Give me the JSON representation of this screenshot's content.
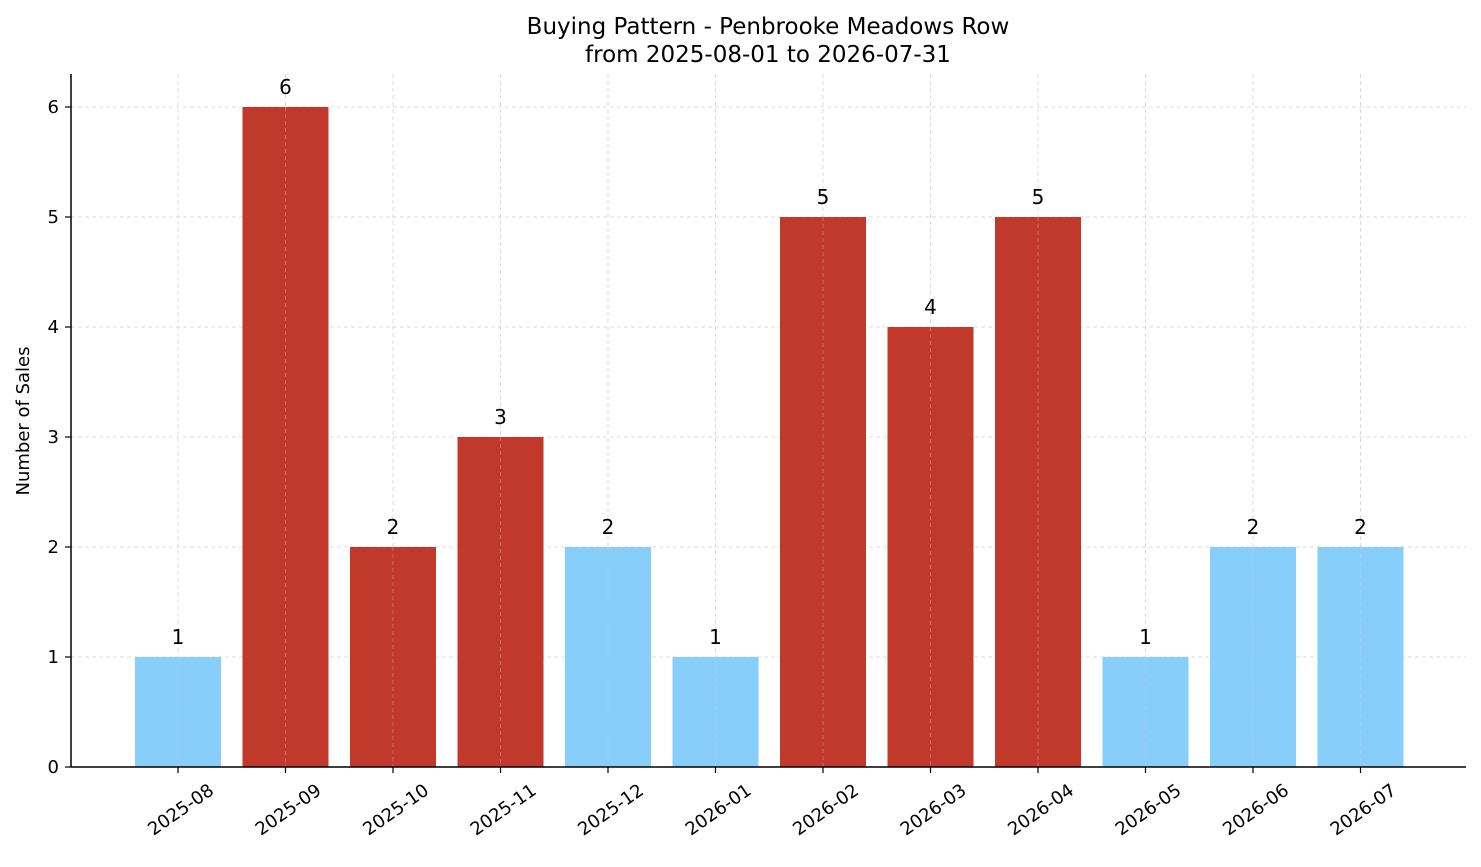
{
  "chart_data": {
    "type": "bar",
    "title": "Buying Pattern - Penbrooke Meadows Row",
    "subtitle": "from 2025-08-01 to 2026-07-31",
    "xlabel": "",
    "ylabel": "Number of Sales",
    "categories": [
      "2025-08",
      "2025-09",
      "2025-10",
      "2025-11",
      "2025-12",
      "2026-01",
      "2026-02",
      "2026-03",
      "2026-04",
      "2026-05",
      "2026-06",
      "2026-07"
    ],
    "values": [
      1,
      6,
      2,
      3,
      2,
      1,
      5,
      4,
      5,
      1,
      2,
      2
    ],
    "bar_colors": [
      "#87CEFA",
      "#C0392B",
      "#C0392B",
      "#C0392B",
      "#87CEFA",
      "#87CEFA",
      "#C0392B",
      "#C0392B",
      "#C0392B",
      "#87CEFA",
      "#87CEFA",
      "#87CEFA"
    ],
    "yticks": [
      0,
      1,
      2,
      3,
      4,
      5,
      6
    ],
    "ylim": [
      0,
      6.3
    ],
    "grid": true,
    "legend": "none",
    "data_labels": true
  }
}
